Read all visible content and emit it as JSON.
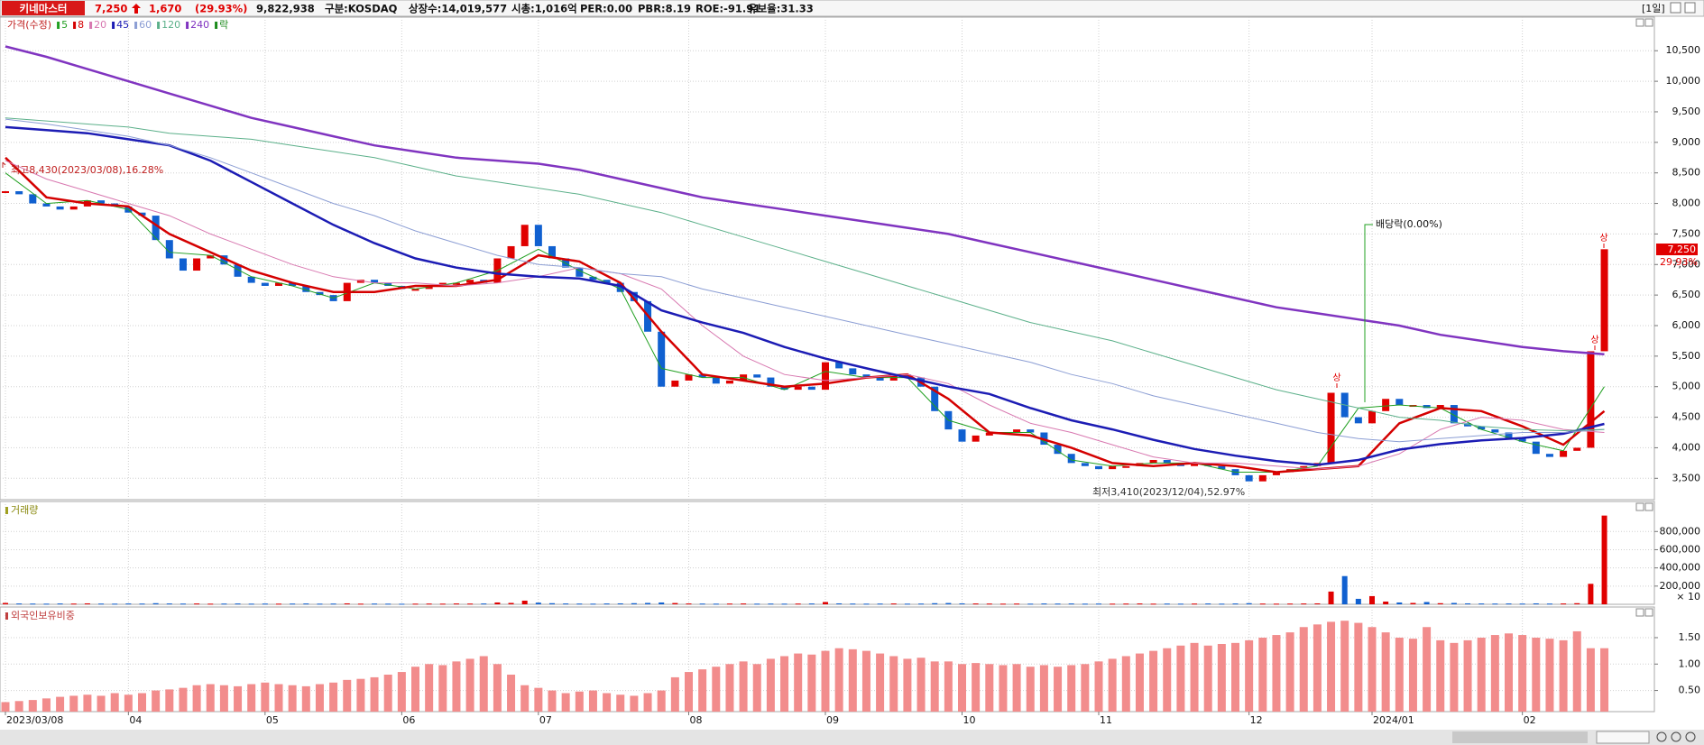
{
  "header": {
    "name": "키네마스터",
    "price": "7,250",
    "change": "1,670",
    "change_rate": "(29.93%)",
    "volume": "9,822,938",
    "market": "구분:KOSDAQ",
    "shares": "상장수:14,019,577",
    "cap": "시총:1,016억",
    "per": "PER:0.00",
    "pbr": "PBR:8.19",
    "roe": "ROE:-91.91",
    "reserve": "유보율:31.33",
    "period": "[1일]"
  },
  "chart_data": [
    {
      "type": "candlestick",
      "title": "가격(수정)",
      "up_color": "#e00000",
      "down_color": "#1060d0",
      "ylim": [
        3150,
        11050
      ],
      "yticks": [
        {
          "value": 3500,
          "label": "3,500"
        },
        {
          "value": 4000,
          "label": "4,000"
        },
        {
          "value": 4500,
          "label": "4,500"
        },
        {
          "value": 5000,
          "label": "5,000"
        },
        {
          "value": 5500,
          "label": "5,500"
        },
        {
          "value": 6000,
          "label": "6,000"
        },
        {
          "value": 6500,
          "label": "6,500"
        },
        {
          "value": 7000,
          "label": "7,000"
        },
        {
          "value": 7500,
          "label": "7,500"
        },
        {
          "value": 8000,
          "label": "8,000"
        },
        {
          "value": 8500,
          "label": "8,500"
        },
        {
          "value": 9000,
          "label": "9,000"
        },
        {
          "value": 9500,
          "label": "9,500"
        },
        {
          "value": 10000,
          "label": "10,000"
        },
        {
          "value": 10500,
          "label": "10,500"
        }
      ],
      "close": [
        8200,
        8150,
        8000,
        7950,
        7900,
        7950,
        8050,
        8000,
        7950,
        7850,
        7800,
        7400,
        7100,
        6900,
        7100,
        7150,
        7000,
        6800,
        6700,
        6650,
        6700,
        6650,
        6550,
        6500,
        6400,
        6700,
        6750,
        6700,
        6650,
        6600,
        6600,
        6650,
        6700,
        6700,
        6750,
        6700,
        7100,
        7300,
        7650,
        7300,
        7100,
        6950,
        6800,
        6750,
        6700,
        6550,
        6400,
        5900,
        5000,
        5100,
        5200,
        5150,
        5050,
        5100,
        5200,
        5150,
        5000,
        4950,
        5000,
        4950,
        5400,
        5300,
        5200,
        5150,
        5100,
        5200,
        5150,
        5000,
        4600,
        4300,
        4100,
        4200,
        4250,
        4250,
        4300,
        4250,
        4050,
        3900,
        3750,
        3700,
        3650,
        3700,
        3700,
        3750,
        3800,
        3750,
        3700,
        3750,
        3700,
        3650,
        3550,
        3450,
        3550,
        3600,
        3650,
        3700,
        3750,
        4900,
        4500,
        4400,
        4600,
        4800,
        4700,
        4700,
        4650,
        4700,
        4400,
        4350,
        4300,
        4250,
        4150,
        4100,
        3900,
        3850,
        3950,
        4000,
        5580,
        7250
      ],
      "series": [
        {
          "name": "5",
          "color": "#22a022",
          "width": 1,
          "values": [
            8500,
            8000,
            8050,
            7900,
            7200,
            7150,
            6800,
            6650,
            6450,
            6700,
            6600,
            6700,
            6900,
            7250,
            6900,
            6600,
            5300,
            5150,
            5150,
            4950,
            5250,
            5150,
            5150,
            4450,
            4250,
            4250,
            3800,
            3700,
            3750,
            3750,
            3600,
            3600,
            3700,
            4650,
            4700,
            4650,
            4300,
            4100,
            3950,
            5000
          ]
        },
        {
          "name": "8",
          "color": "#d40000",
          "width": 2.5,
          "values": [
            8750,
            8100,
            8000,
            7950,
            7500,
            7200,
            6900,
            6700,
            6550,
            6550,
            6650,
            6650,
            6750,
            7150,
            7050,
            6700,
            5900,
            5200,
            5100,
            5000,
            5050,
            5150,
            5200,
            4800,
            4250,
            4200,
            4000,
            3750,
            3700,
            3750,
            3700,
            3600,
            3650,
            3700,
            4400,
            4650,
            4600,
            4350,
            4050,
            4600
          ]
        },
        {
          "name": "20",
          "color": "#d878b0",
          "width": 1,
          "values": [
            8700,
            8400,
            8200,
            8000,
            7800,
            7500,
            7250,
            7000,
            6800,
            6700,
            6700,
            6650,
            6700,
            6800,
            6950,
            6850,
            6600,
            6000,
            5500,
            5200,
            5100,
            5150,
            5200,
            5050,
            4700,
            4400,
            4250,
            4050,
            3850,
            3750,
            3750,
            3700,
            3650,
            3700,
            3900,
            4300,
            4500,
            4450,
            4300,
            4250
          ]
        },
        {
          "name": "45",
          "color": "#1c1cb4",
          "width": 2.5,
          "values": [
            9250,
            9200,
            9150,
            9050,
            8950,
            8700,
            8350,
            8000,
            7650,
            7350,
            7100,
            6950,
            6850,
            6800,
            6770,
            6650,
            6250,
            6050,
            5880,
            5650,
            5460,
            5300,
            5150,
            5000,
            4880,
            4650,
            4450,
            4300,
            4130,
            3980,
            3870,
            3780,
            3720,
            3800,
            3970,
            4060,
            4120,
            4160,
            4230,
            4390
          ]
        },
        {
          "name": "60",
          "color": "#8c9ed4",
          "width": 1,
          "values": [
            9380,
            9300,
            9200,
            9100,
            8950,
            8750,
            8500,
            8250,
            8000,
            7800,
            7550,
            7350,
            7150,
            7000,
            6950,
            6850,
            6800,
            6600,
            6450,
            6300,
            6150,
            6000,
            5850,
            5700,
            5550,
            5400,
            5200,
            5050,
            4850,
            4700,
            4550,
            4400,
            4250,
            4150,
            4100,
            4150,
            4200,
            4250,
            4250,
            4300
          ]
        },
        {
          "name": "120",
          "color": "#5cb08a",
          "width": 1,
          "values": [
            9400,
            9350,
            9300,
            9250,
            9150,
            9100,
            9050,
            8950,
            8850,
            8750,
            8600,
            8450,
            8350,
            8250,
            8150,
            8000,
            7850,
            7650,
            7450,
            7250,
            7050,
            6850,
            6650,
            6450,
            6250,
            6050,
            5900,
            5750,
            5550,
            5350,
            5150,
            4950,
            4800,
            4650,
            4500,
            4450,
            4350,
            4300,
            4280,
            4300
          ]
        },
        {
          "name": "240",
          "color": "#8034c0",
          "width": 2.5,
          "values": [
            10570,
            10400,
            10200,
            10000,
            9800,
            9600,
            9400,
            9250,
            9100,
            8950,
            8850,
            8750,
            8700,
            8650,
            8550,
            8400,
            8250,
            8100,
            8000,
            7900,
            7800,
            7700,
            7600,
            7500,
            7350,
            7200,
            7050,
            6900,
            6750,
            6600,
            6450,
            6300,
            6200,
            6100,
            6000,
            5850,
            5750,
            5650,
            5580,
            5530
          ]
        }
      ],
      "lock_label": "락",
      "lock_color": "#1a8a1a",
      "high_label": "최고8,430(2023/03/08),16.28%",
      "low_label": "최저3,410(2023/12/04),52.97%",
      "dividend_label": "배당락(0.00%)",
      "limit_up_labels": [
        "상",
        "상",
        "상"
      ],
      "last_price_label": "7,250",
      "last_rate_label": "29.93%"
    },
    {
      "type": "bar",
      "title": "거래량",
      "ylim": [
        0,
        1130000
      ],
      "yticks": [
        {
          "value": 200000,
          "label": "200,000"
        },
        {
          "value": 400000,
          "label": "400,000"
        },
        {
          "value": 600000,
          "label": "600,000"
        },
        {
          "value": 800000,
          "label": "800,000"
        }
      ],
      "unit_label": "× 10",
      "values": [
        15000,
        9000,
        8000,
        7000,
        9000,
        8000,
        10000,
        8000,
        7000,
        9000,
        8000,
        12000,
        9000,
        8000,
        9000,
        7000,
        8000,
        9000,
        7000,
        8000,
        7000,
        8000,
        9000,
        7000,
        8000,
        10000,
        7000,
        8000,
        7000,
        6000,
        7000,
        8000,
        7000,
        9000,
        8000,
        9000,
        20000,
        15000,
        40000,
        18000,
        12000,
        9000,
        8000,
        7000,
        9000,
        10000,
        12000,
        15000,
        20000,
        14000,
        9000,
        8000,
        7000,
        8000,
        9000,
        7000,
        8000,
        7000,
        8000,
        9000,
        25000,
        10000,
        8000,
        7000,
        8000,
        9000,
        7000,
        8000,
        12000,
        14000,
        10000,
        9000,
        8000,
        7000,
        8000,
        7000,
        9000,
        8000,
        9000,
        7000,
        8000,
        7000,
        8000,
        9000,
        7000,
        8000,
        7000,
        8000,
        9000,
        7000,
        9000,
        12000,
        8000,
        7000,
        8000,
        9000,
        10000,
        140000,
        310000,
        60000,
        90000,
        30000,
        20000,
        15000,
        25000,
        12000,
        15000,
        10000,
        9000,
        8000,
        9000,
        8000,
        10000,
        8000,
        9000,
        12000,
        225000,
        975000
      ]
    },
    {
      "type": "bar",
      "title": "외국인보유비중",
      "color": "#f28c8c",
      "ylim": [
        0.1,
        2.08
      ],
      "yticks": [
        {
          "value": 0.5,
          "label": "0.50"
        },
        {
          "value": 1,
          "label": "1.00"
        },
        {
          "value": 1.5,
          "label": "1.50"
        }
      ],
      "values": [
        0.28,
        0.3,
        0.32,
        0.35,
        0.38,
        0.4,
        0.42,
        0.4,
        0.45,
        0.42,
        0.45,
        0.5,
        0.52,
        0.55,
        0.6,
        0.62,
        0.6,
        0.58,
        0.62,
        0.65,
        0.62,
        0.6,
        0.58,
        0.62,
        0.65,
        0.7,
        0.72,
        0.75,
        0.8,
        0.85,
        0.95,
        1.0,
        0.98,
        1.05,
        1.1,
        1.15,
        1.0,
        0.8,
        0.6,
        0.55,
        0.5,
        0.45,
        0.48,
        0.5,
        0.45,
        0.42,
        0.4,
        0.45,
        0.5,
        0.75,
        0.85,
        0.9,
        0.95,
        1.0,
        1.05,
        1.0,
        1.1,
        1.15,
        1.2,
        1.18,
        1.25,
        1.3,
        1.28,
        1.25,
        1.2,
        1.15,
        1.1,
        1.12,
        1.05,
        1.05,
        1.0,
        1.02,
        1.0,
        0.98,
        1.0,
        0.95,
        0.98,
        0.95,
        0.98,
        1.0,
        1.05,
        1.1,
        1.15,
        1.2,
        1.25,
        1.3,
        1.35,
        1.4,
        1.35,
        1.38,
        1.4,
        1.45,
        1.5,
        1.55,
        1.6,
        1.7,
        1.75,
        1.8,
        1.82,
        1.78,
        1.7,
        1.6,
        1.5,
        1.48,
        1.7,
        1.45,
        1.4,
        1.45,
        1.5,
        1.55,
        1.58,
        1.55,
        1.5,
        1.48,
        1.45,
        1.62,
        1.3,
        1.3
      ],
      "xticks": [
        {
          "value": 0,
          "label": "2023/03/08"
        },
        {
          "value": 9,
          "label": "04"
        },
        {
          "value": 19,
          "label": "05"
        },
        {
          "value": 29,
          "label": "06"
        },
        {
          "value": 39,
          "label": "07"
        },
        {
          "value": 50,
          "label": "08"
        },
        {
          "value": 60,
          "label": "09"
        },
        {
          "value": 70,
          "label": "10"
        },
        {
          "value": 80,
          "label": "11"
        },
        {
          "value": 91,
          "label": "12"
        },
        {
          "value": 100,
          "label": "2024/01"
        },
        {
          "value": 111,
          "label": "02"
        }
      ]
    }
  ]
}
